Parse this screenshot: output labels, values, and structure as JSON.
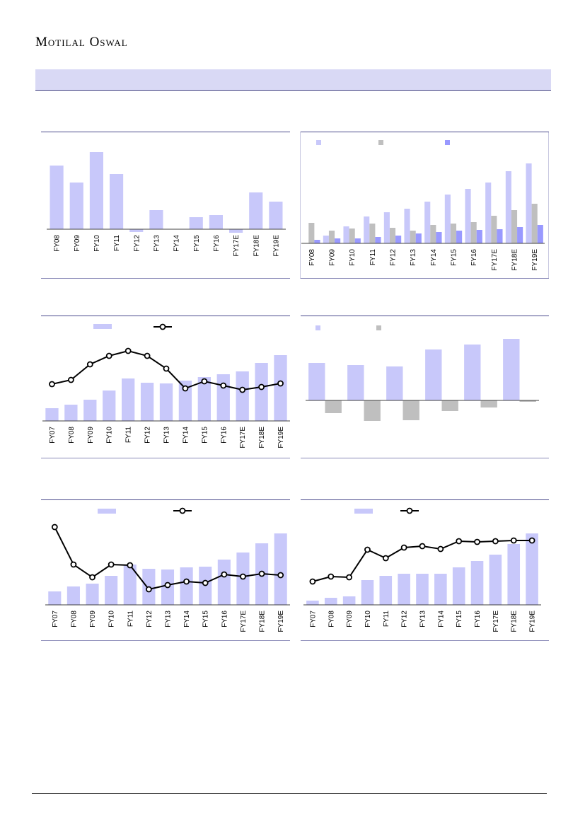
{
  "header": {
    "brand": "Motilal Oswal"
  },
  "chart_data": [
    {
      "type": "bar",
      "categories": [
        "FY08",
        "FY09",
        "FY10",
        "FY11",
        "FY12",
        "FY13",
        "FY14",
        "FY15",
        "FY16",
        "FY17E",
        "FY18E",
        "FY19E"
      ],
      "ylim": [
        -20,
        130
      ],
      "series": [
        {
          "color": "#c8c8fa",
          "values": [
            90,
            66,
            109,
            78,
            -4,
            27,
            0,
            17,
            20,
            -5,
            52,
            39
          ]
        }
      ]
    },
    {
      "type": "bar",
      "categories": [
        "FY08",
        "FY09",
        "FY10",
        "FY11",
        "FY12",
        "FY13",
        "FY14",
        "FY15",
        "FY16",
        "FY17E",
        "FY18E",
        "FY19E"
      ],
      "ylim": [
        0,
        120
      ],
      "series": [
        {
          "color": "#c8c8fa",
          "values": [
            0,
            11,
            24,
            38,
            44,
            49,
            59,
            69,
            77,
            86,
            102,
            113
          ]
        },
        {
          "color": "#bfbfbf",
          "values": [
            29,
            18,
            21,
            28,
            22,
            18,
            26,
            28,
            30,
            39,
            47,
            56
          ]
        },
        {
          "color": "#9999ff",
          "values": [
            5,
            7,
            7,
            9,
            11,
            14,
            16,
            18,
            19,
            20,
            23,
            26
          ]
        }
      ]
    },
    {
      "type": "bar",
      "categories": [
        "FY07",
        "FY08",
        "FY09",
        "FY10",
        "FY11",
        "FY12",
        "FY13",
        "FY14",
        "FY15",
        "FY16",
        "FY17E",
        "FY18E",
        "FY19E"
      ],
      "ylim": [
        0,
        110
      ],
      "series": [
        {
          "color": "#c8c8fa",
          "values": [
            18,
            23,
            30,
            43,
            60,
            54,
            53,
            57,
            62,
            66,
            70,
            82,
            93
          ]
        },
        {
          "type": "line",
          "color": "#000000",
          "values": [
            52,
            58,
            80,
            92,
            99,
            92,
            74,
            46,
            56,
            50,
            44,
            48,
            53
          ]
        }
      ]
    },
    {
      "type": "bar",
      "categories": [
        null,
        null,
        null,
        null,
        null,
        null
      ],
      "ylim": [
        -40,
        100
      ],
      "series": [
        {
          "color": "#c8c8fa",
          "values": [
            53,
            50,
            48,
            72,
            79,
            87
          ]
        },
        {
          "color": "#bfbfbf",
          "values": [
            -18,
            -29,
            -28,
            -15,
            -10,
            -2
          ]
        }
      ]
    },
    {
      "type": "bar",
      "categories": [
        "FY07",
        "FY08",
        "FY09",
        "FY10",
        "FY11",
        "FY12",
        "FY13",
        "FY14",
        "FY15",
        "FY16",
        "FY17E",
        "FY18E",
        "FY19E"
      ],
      "ylim": [
        0,
        120
      ],
      "series": [
        {
          "color": "#c8c8fa",
          "values": [
            19,
            26,
            30,
            41,
            57,
            51,
            50,
            53,
            54,
            64,
            74,
            87,
            101
          ]
        },
        {
          "type": "line",
          "color": "#000000",
          "values": [
            110,
            57,
            39,
            57,
            56,
            22,
            28,
            33,
            31,
            43,
            40,
            44,
            42
          ]
        }
      ]
    },
    {
      "type": "bar",
      "categories": [
        "FY07",
        "FY08",
        "FY09",
        "FY10",
        "FY11",
        "FY12",
        "FY13",
        "FY14",
        "FY15",
        "FY16",
        "FY17E",
        "FY18E",
        "FY19E"
      ],
      "ylim": [
        0,
        110
      ],
      "series": [
        {
          "color": "#c8c8fa",
          "values": [
            6,
            10,
            12,
            35,
            41,
            44,
            44,
            44,
            53,
            62,
            71,
            86,
            101
          ]
        },
        {
          "type": "line",
          "color": "#000000",
          "values": [
            33,
            40,
            39,
            78,
            66,
            81,
            83,
            79,
            90,
            89,
            90,
            91,
            91
          ]
        }
      ]
    }
  ]
}
